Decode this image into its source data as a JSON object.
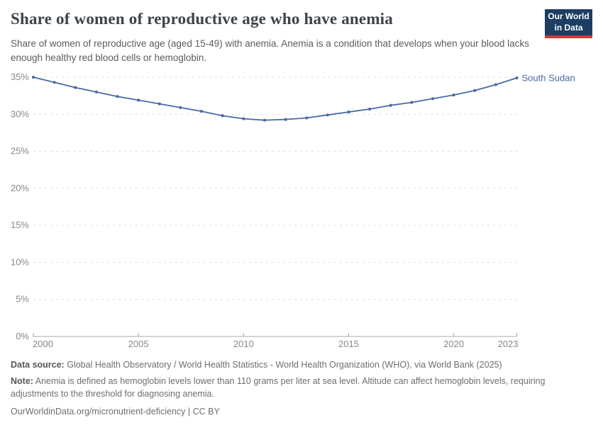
{
  "header": {
    "title": "Share of women of reproductive age who have anemia",
    "subtitle": "Share of women of reproductive age (aged 15-49) with anemia. Anemia is a condition that develops when your blood lacks enough healthy red blood cells or hemoglobin.",
    "logo": {
      "line1": "Our World",
      "line2": "in Data",
      "bg_color": "#1d3d63",
      "stripe_color": "#d13833"
    }
  },
  "chart_data": {
    "type": "line",
    "title": "Share of women of reproductive age who have anemia",
    "xlabel": "",
    "ylabel": "",
    "ylim": [
      0,
      35
    ],
    "ytick_step": 5,
    "ytick_suffix": "%",
    "xticks": [
      2000,
      2005,
      2010,
      2015,
      2020,
      2023
    ],
    "grid": "dashed horizontal gridlines",
    "legend": "end-of-line entity label",
    "series": [
      {
        "name": "South Sudan",
        "color": "#4a69a3",
        "x": [
          2000,
          2001,
          2002,
          2003,
          2004,
          2005,
          2006,
          2007,
          2008,
          2009,
          2010,
          2011,
          2012,
          2013,
          2014,
          2015,
          2016,
          2017,
          2018,
          2019,
          2020,
          2021,
          2022,
          2023
        ],
        "values": [
          35.0,
          34.3,
          33.6,
          33.0,
          32.4,
          31.9,
          31.4,
          30.9,
          30.4,
          29.8,
          29.4,
          29.2,
          29.3,
          29.5,
          29.9,
          30.3,
          30.7,
          31.2,
          31.6,
          32.1,
          32.6,
          33.2,
          34.0,
          34.9
        ]
      }
    ],
    "axis_label_color": "#888888",
    "gridline_color": "#dddddd",
    "axis_line_color": "#a8a8a8"
  },
  "footer": {
    "source_label": "Data source:",
    "source_text": "Global Health Observatory / World Health Statistics - World Health Organization (WHO), via World Bank (2025)",
    "note_label": "Note:",
    "note_text": "Anemia is defined as hemoglobin levels lower than 110 grams per liter at sea level. Altitude can affect hemoglobin levels, requiring adjustments to the threshold for diagnosing anemia.",
    "url_text": "OurWorldinData.org/micronutrient-deficiency | CC BY"
  }
}
